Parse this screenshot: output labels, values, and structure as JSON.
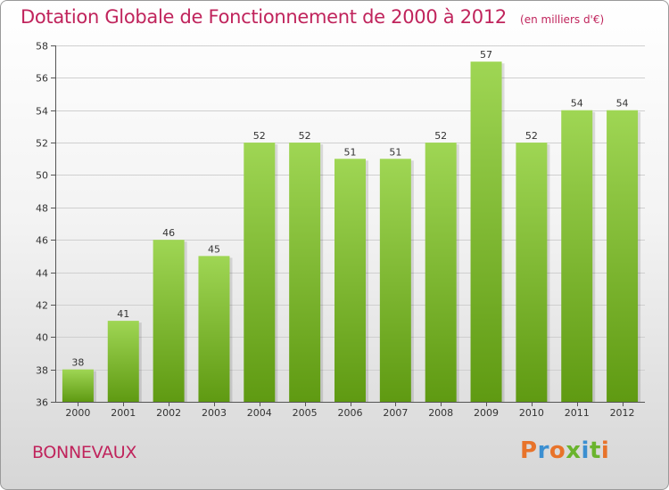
{
  "chart_data": {
    "type": "bar",
    "title": "Dotation Globale de Fonctionnement de 2000 à 2012",
    "subtitle": "(en milliers d'€)",
    "categories": [
      "2000",
      "2001",
      "2002",
      "2003",
      "2004",
      "2005",
      "2006",
      "2007",
      "2008",
      "2009",
      "2010",
      "2011",
      "2012"
    ],
    "values": [
      38,
      41,
      46,
      45,
      52,
      52,
      51,
      51,
      52,
      57,
      52,
      54,
      54
    ],
    "ylim": [
      36,
      58
    ],
    "yticks": [
      36,
      38,
      40,
      42,
      44,
      46,
      48,
      50,
      52,
      54,
      56,
      58
    ],
    "grid": true,
    "bar_color_top": "#9fd654",
    "bar_color_bottom": "#5f9a12"
  },
  "footer": {
    "town": "BONNEVAUX",
    "brand": "Proxiti"
  },
  "colors": {
    "title": "#c0245c",
    "grid": "#cfcfcf",
    "brand_letters": [
      "#e8732a",
      "#3b8fd1",
      "#e8732a",
      "#6ab42d",
      "#3b8fd1",
      "#6ab42d",
      "#e8732a"
    ]
  }
}
